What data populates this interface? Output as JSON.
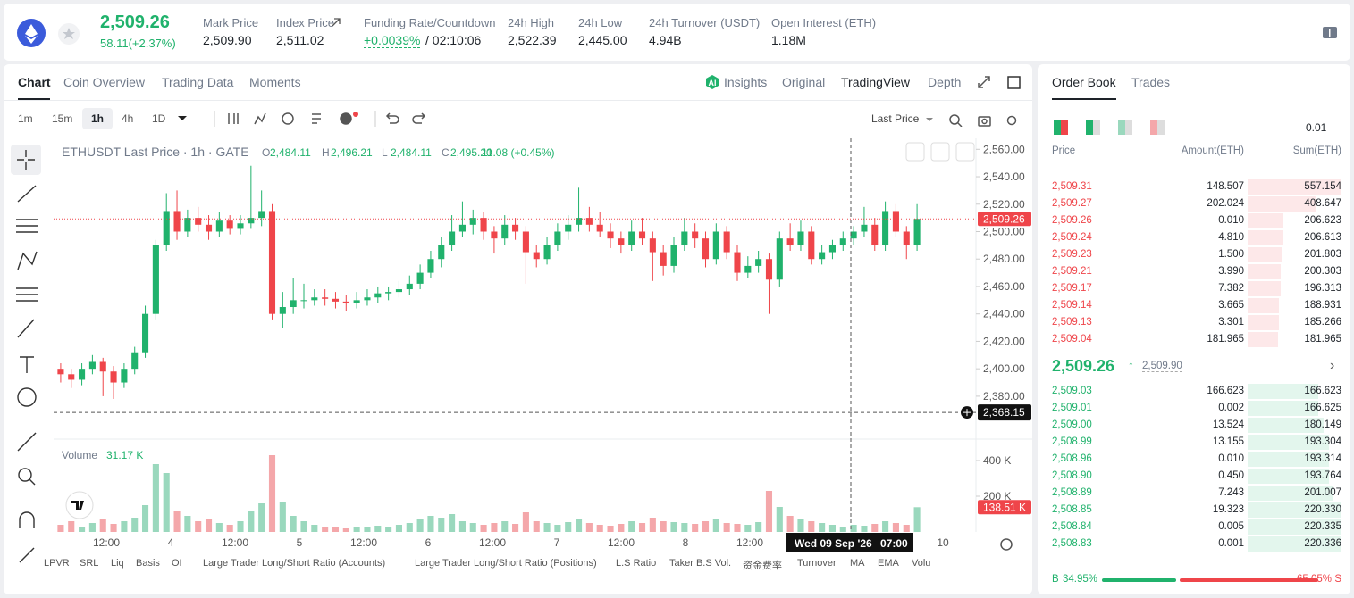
{
  "header": {
    "price": "2,509.26",
    "change": "58.11(+2.37%)",
    "stats": [
      {
        "label": "Mark Price",
        "value": "2,509.90"
      },
      {
        "label": "Index Price",
        "value": "2,511.02"
      },
      {
        "label": "Funding Rate/Countdown",
        "value": "+0.0039%",
        "extra": "/ 02:10:06"
      },
      {
        "label": "24h High",
        "value": "2,522.39"
      },
      {
        "label": "24h Low",
        "value": "2,445.00"
      },
      {
        "label": "24h Turnover (USDT)",
        "value": "4.94B"
      },
      {
        "label": "Open Interest (ETH)",
        "value": "1.18M"
      }
    ]
  },
  "chart_tabs": [
    "Chart",
    "Coin Overview",
    "Trading Data",
    "Moments"
  ],
  "views": [
    "Insights",
    "Original",
    "TradingView",
    "Depth"
  ],
  "intervals": [
    "1m",
    "15m",
    "1h",
    "4h",
    "1D"
  ],
  "price_source": "Last Price",
  "chart_data": {
    "type": "candlestick",
    "legend": "ETHUSDT Last Price · 1h · GATE",
    "ohlc": [
      {
        "key": "O",
        "value": "2,484.11"
      },
      {
        "key": "H",
        "value": "2,496.21"
      },
      {
        "key": "L",
        "value": "2,484.11"
      },
      {
        "key": "C",
        "value": "2,495.20"
      }
    ],
    "change": "11.08 (+0.45%)",
    "volume_label": "Volume",
    "volume_value": "31.17 K",
    "candles": [
      [
        2400,
        2404,
        2390,
        2396
      ],
      [
        2396,
        2400,
        2386,
        2392
      ],
      [
        2392,
        2404,
        2388,
        2400
      ],
      [
        2400,
        2410,
        2396,
        2405
      ],
      [
        2405,
        2408,
        2380,
        2398
      ],
      [
        2398,
        2402,
        2378,
        2390
      ],
      [
        2390,
        2404,
        2386,
        2400
      ],
      [
        2400,
        2416,
        2396,
        2412
      ],
      [
        2412,
        2446,
        2408,
        2440
      ],
      [
        2440,
        2494,
        2436,
        2490
      ],
      [
        2490,
        2528,
        2486,
        2515
      ],
      [
        2515,
        2530,
        2494,
        2500
      ],
      [
        2500,
        2516,
        2496,
        2510
      ],
      [
        2510,
        2518,
        2500,
        2505
      ],
      [
        2505,
        2512,
        2494,
        2500
      ],
      [
        2500,
        2514,
        2496,
        2508
      ],
      [
        2508,
        2512,
        2498,
        2502
      ],
      [
        2502,
        2512,
        2498,
        2506
      ],
      [
        2506,
        2548,
        2502,
        2510
      ],
      [
        2510,
        2530,
        2504,
        2515
      ],
      [
        2515,
        2520,
        2436,
        2440
      ],
      [
        2440,
        2456,
        2430,
        2445
      ],
      [
        2445,
        2466,
        2440,
        2450
      ],
      [
        2450,
        2462,
        2444,
        2450
      ],
      [
        2450,
        2458,
        2446,
        2452
      ],
      [
        2452,
        2458,
        2446,
        2451
      ],
      [
        2451,
        2456,
        2444,
        2449
      ],
      [
        2449,
        2454,
        2442,
        2448
      ],
      [
        2448,
        2456,
        2444,
        2450
      ],
      [
        2450,
        2458,
        2446,
        2452
      ],
      [
        2452,
        2460,
        2448,
        2455
      ],
      [
        2455,
        2460,
        2450,
        2456
      ],
      [
        2456,
        2464,
        2452,
        2458
      ],
      [
        2458,
        2468,
        2454,
        2462
      ],
      [
        2462,
        2476,
        2458,
        2470
      ],
      [
        2470,
        2486,
        2466,
        2480
      ],
      [
        2480,
        2496,
        2474,
        2490
      ],
      [
        2490,
        2512,
        2486,
        2500
      ],
      [
        2500,
        2522,
        2496,
        2505
      ],
      [
        2505,
        2516,
        2498,
        2510
      ],
      [
        2510,
        2514,
        2494,
        2500
      ],
      [
        2500,
        2504,
        2484,
        2495
      ],
      [
        2495,
        2512,
        2490,
        2505
      ],
      [
        2505,
        2510,
        2494,
        2500
      ],
      [
        2500,
        2504,
        2462,
        2485
      ],
      [
        2485,
        2490,
        2474,
        2480
      ],
      [
        2480,
        2496,
        2476,
        2490
      ],
      [
        2490,
        2506,
        2486,
        2500
      ],
      [
        2500,
        2512,
        2494,
        2505
      ],
      [
        2505,
        2532,
        2500,
        2510
      ],
      [
        2510,
        2518,
        2500,
        2505
      ],
      [
        2505,
        2514,
        2496,
        2500
      ],
      [
        2500,
        2506,
        2488,
        2495
      ],
      [
        2495,
        2500,
        2484,
        2490
      ],
      [
        2490,
        2508,
        2486,
        2500
      ],
      [
        2500,
        2510,
        2490,
        2495
      ],
      [
        2495,
        2500,
        2464,
        2485
      ],
      [
        2485,
        2490,
        2468,
        2475
      ],
      [
        2475,
        2496,
        2470,
        2490
      ],
      [
        2490,
        2510,
        2486,
        2500
      ],
      [
        2500,
        2506,
        2488,
        2495
      ],
      [
        2495,
        2500,
        2474,
        2480
      ],
      [
        2480,
        2506,
        2476,
        2500
      ],
      [
        2500,
        2504,
        2480,
        2485
      ],
      [
        2485,
        2490,
        2464,
        2470
      ],
      [
        2470,
        2482,
        2466,
        2475
      ],
      [
        2475,
        2486,
        2470,
        2480
      ],
      [
        2480,
        2484,
        2440,
        2465
      ],
      [
        2465,
        2500,
        2460,
        2495
      ],
      [
        2495,
        2506,
        2486,
        2490
      ],
      [
        2490,
        2508,
        2486,
        2500
      ],
      [
        2500,
        2504,
        2476,
        2480
      ],
      [
        2480,
        2490,
        2476,
        2485
      ],
      [
        2485,
        2494,
        2480,
        2490
      ],
      [
        2490,
        2500,
        2486,
        2495
      ],
      [
        2495,
        2504,
        2490,
        2500
      ],
      [
        2500,
        2518,
        2496,
        2505
      ],
      [
        2505,
        2510,
        2486,
        2490
      ],
      [
        2490,
        2522,
        2486,
        2515
      ],
      [
        2515,
        2520,
        2496,
        2500
      ],
      [
        2500,
        2504,
        2480,
        2490
      ],
      [
        2490,
        2520,
        2486,
        2509.26
      ]
    ],
    "volumes": [
      40,
      60,
      30,
      50,
      70,
      45,
      60,
      80,
      150,
      380,
      330,
      120,
      90,
      60,
      70,
      50,
      40,
      60,
      120,
      160,
      430,
      170,
      90,
      60,
      40,
      30,
      25,
      20,
      25,
      30,
      35,
      30,
      40,
      50,
      70,
      90,
      80,
      100,
      60,
      50,
      40,
      50,
      60,
      45,
      110,
      60,
      50,
      40,
      55,
      70,
      50,
      40,
      35,
      45,
      60,
      50,
      80,
      60,
      55,
      50,
      45,
      60,
      70,
      50,
      45,
      40,
      55,
      230,
      140,
      90,
      70,
      60,
      50,
      40,
      30,
      40,
      35,
      45,
      60,
      50,
      40,
      138.51
    ],
    "ylim": [
      2350,
      2568
    ],
    "yticks": [
      {
        "value": 2380,
        "label": "2,380.00"
      },
      {
        "value": 2400,
        "label": "2,400.00"
      },
      {
        "value": 2420,
        "label": "2,420.00"
      },
      {
        "value": 2440,
        "label": "2,440.00"
      },
      {
        "value": 2460,
        "label": "2,460.00"
      },
      {
        "value": 2480,
        "label": "2,480.00"
      },
      {
        "value": 2500,
        "label": "2,500.00"
      },
      {
        "value": 2520,
        "label": "2,520.00"
      },
      {
        "value": 2540,
        "label": "2,540.00"
      },
      {
        "value": 2560,
        "label": "2,560.00"
      }
    ],
    "vlim": [
      0,
      510
    ],
    "vticks": [
      {
        "value": 200,
        "label": "200 K"
      },
      {
        "value": 400,
        "label": "400 K"
      }
    ],
    "xticks": [
      "12:00",
      "4",
      "12:00",
      "5",
      "12:00",
      "6",
      "12:00",
      "7",
      "12:00",
      "8",
      "12:00",
      null,
      null,
      "10"
    ],
    "last_price_label": "2,509.26",
    "last_volume_label": "138.51 K",
    "crosshair": {
      "value": 2368.15,
      "label": "2,368.15",
      "date": "Wed 09 Sep '26",
      "time": "07:00"
    },
    "colors": {
      "up": "#20b26c",
      "down": "#ef454a",
      "volume_up": "#9ad8bd",
      "volume_down": "#f4a7aa"
    }
  },
  "indicators": [
    "LPVR",
    "SRL",
    "Liq",
    "Basis",
    "OI",
    "Large Trader Long/Short Ratio (Accounts)",
    "Large Trader Long/Short Ratio (Positions)",
    "L.S Ratio",
    "Taker B.S Vol.",
    "资金费率",
    "Turnover",
    "MA",
    "EMA",
    "Volu"
  ],
  "order_book": {
    "tabs": [
      "Order Book",
      "Trades"
    ],
    "step": "0.01",
    "columns": [
      "Price",
      "Amount(ETH)",
      "Sum(ETH)"
    ],
    "asks": [
      [
        "2,509.31",
        "148.507",
        "557.154"
      ],
      [
        "2,509.27",
        "202.024",
        "408.647"
      ],
      [
        "2,509.26",
        "0.010",
        "206.623"
      ],
      [
        "2,509.24",
        "4.810",
        "206.613"
      ],
      [
        "2,509.23",
        "1.500",
        "201.803"
      ],
      [
        "2,509.21",
        "3.990",
        "200.303"
      ],
      [
        "2,509.17",
        "7.382",
        "196.313"
      ],
      [
        "2,509.14",
        "3.665",
        "188.931"
      ],
      [
        "2,509.13",
        "3.301",
        "185.266"
      ],
      [
        "2,509.04",
        "181.965",
        "181.965"
      ]
    ],
    "mid_price": "2,509.26",
    "mark_price": "2,509.90",
    "bids": [
      [
        "2,509.03",
        "166.623",
        "166.623"
      ],
      [
        "2,509.01",
        "0.002",
        "166.625"
      ],
      [
        "2,509.00",
        "13.524",
        "180.149"
      ],
      [
        "2,508.99",
        "13.155",
        "193.304"
      ],
      [
        "2,508.96",
        "0.010",
        "193.314"
      ],
      [
        "2,508.90",
        "0.450",
        "193.764"
      ],
      [
        "2,508.89",
        "7.243",
        "201.007"
      ],
      [
        "2,508.85",
        "19.323",
        "220.330"
      ],
      [
        "2,508.84",
        "0.005",
        "220.335"
      ],
      [
        "2,508.83",
        "0.001",
        "220.336"
      ]
    ],
    "buy_label": "B",
    "buy_ratio": "34.95%",
    "sell_ratio": "65.05%",
    "sell_label": "S"
  }
}
